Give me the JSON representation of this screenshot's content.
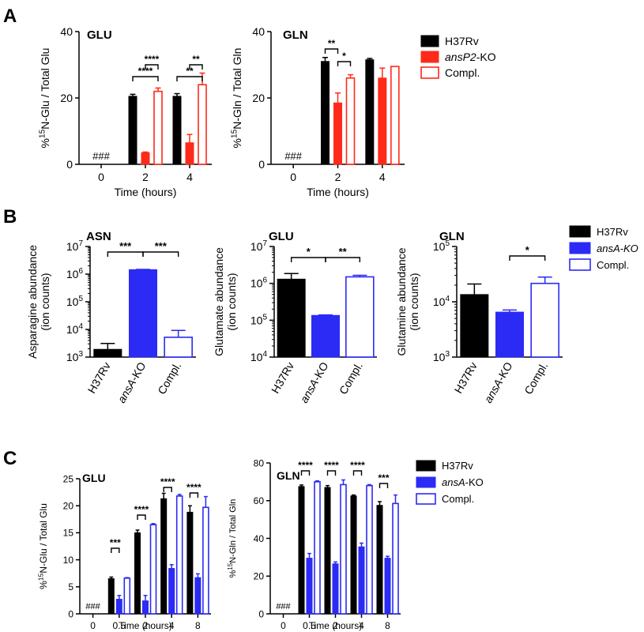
{
  "colors": {
    "black": "#000000",
    "red": "#ff2a1a",
    "blue": "#2b2bf5"
  },
  "chart_data": [
    {
      "id": "A-GLU",
      "panel": "A",
      "type": "bar",
      "title": "GLU",
      "ylabel_parts": [
        "%",
        "15",
        "N-Glu / Total Glu"
      ],
      "xlabel": "Time (hours)",
      "ylim": [
        0,
        40
      ],
      "yticks": [
        "0",
        "20",
        "40"
      ],
      "categories": [
        "0",
        "2",
        "4"
      ],
      "series": [
        {
          "name": "H37Rv",
          "style": "black",
          "values": [
            null,
            20.5,
            20.5
          ],
          "errors": [
            0,
            0.6,
            0.8
          ]
        },
        {
          "name": "ansP2-KO",
          "style": "red",
          "values": [
            null,
            3.5,
            6.5
          ],
          "errors": [
            0,
            0.2,
            2.5
          ]
        },
        {
          "name": "Compl.",
          "style": "red-outline",
          "values": [
            null,
            22,
            24
          ],
          "errors": [
            0,
            1,
            3.5
          ]
        }
      ],
      "missing_label": "###",
      "sig": [
        {
          "cat": 1,
          "a": 0,
          "b": 2,
          "text": "****"
        },
        {
          "cat": 1,
          "a": 1,
          "b": 2,
          "text": "****"
        },
        {
          "cat": 2,
          "a": 0,
          "b": 2,
          "text": "**"
        },
        {
          "cat": 2,
          "a": 1,
          "b": 2,
          "text": "**"
        }
      ]
    },
    {
      "id": "A-GLN",
      "panel": "A",
      "type": "bar",
      "title": "GLN",
      "ylabel_parts": [
        "%",
        "15",
        "N-Gln / Total Gln"
      ],
      "xlabel": "Time (hours)",
      "ylim": [
        0,
        40
      ],
      "yticks": [
        "0",
        "20",
        "40"
      ],
      "categories": [
        "0",
        "2",
        "4"
      ],
      "series": [
        {
          "name": "H37Rv",
          "style": "black",
          "values": [
            null,
            31,
            31.5
          ],
          "errors": [
            0,
            1.2,
            0.4
          ]
        },
        {
          "name": "ansP2-KO",
          "style": "red",
          "values": [
            null,
            18.5,
            26
          ],
          "errors": [
            0,
            3,
            3
          ]
        },
        {
          "name": "Compl.",
          "style": "red-outline",
          "values": [
            null,
            26,
            29.5
          ],
          "errors": [
            0,
            1,
            0
          ]
        }
      ],
      "missing_label": "###",
      "sig": [
        {
          "cat": 1,
          "a": 0,
          "b": 1,
          "text": "**"
        },
        {
          "cat": 1,
          "a": 1,
          "b": 2,
          "text": "*"
        }
      ]
    },
    {
      "id": "B-ASN",
      "panel": "B",
      "type": "bar",
      "title": "ASN",
      "log": true,
      "ylabel_lines": [
        "Asparagine abundance",
        "(ion counts)"
      ],
      "ylim_exp": [
        3,
        7
      ],
      "categories": [
        "H37Rv",
        "ansA-KO",
        "Compl."
      ],
      "italic_categories": [
        "ansA"
      ],
      "values": [
        1900,
        1450000,
        5200
      ],
      "errors": [
        1200,
        30000,
        4000
      ],
      "styles": [
        "black",
        "blue",
        "blue-outline"
      ],
      "sig": [
        {
          "a": 0,
          "b": 1,
          "text": "***"
        },
        {
          "a": 1,
          "b": 2,
          "text": "***"
        }
      ]
    },
    {
      "id": "B-GLU",
      "panel": "B",
      "type": "bar",
      "title": "GLU",
      "log": true,
      "ylabel_lines": [
        "Glutamate abundance",
        "(ion counts)"
      ],
      "ylim_exp": [
        4,
        7
      ],
      "categories": [
        "H37Rv",
        "ansA-KO",
        "Compl."
      ],
      "italic_categories": [
        "ansA"
      ],
      "values": [
        1300000,
        135000,
        1500000
      ],
      "errors": [
        550000,
        4000,
        150000
      ],
      "styles": [
        "black",
        "blue",
        "blue-outline"
      ],
      "sig": [
        {
          "a": 0,
          "b": 1,
          "text": "*"
        },
        {
          "a": 1,
          "b": 2,
          "text": "**"
        }
      ]
    },
    {
      "id": "B-GLN",
      "panel": "B",
      "type": "bar",
      "title": "GLN",
      "log": true,
      "ylabel_lines": [
        "Glutamine abundance",
        "(ion counts)"
      ],
      "ylim_exp": [
        3,
        5
      ],
      "categories": [
        "H37Rv",
        "ansA-KO",
        "Compl."
      ],
      "italic_categories": [
        "ansA"
      ],
      "values": [
        13500,
        6500,
        21500
      ],
      "errors": [
        7500,
        600,
        6500
      ],
      "styles": [
        "black",
        "blue",
        "blue-outline"
      ],
      "sig": [
        {
          "a": 1,
          "b": 2,
          "text": "*"
        }
      ]
    },
    {
      "id": "C-GLU",
      "panel": "C",
      "type": "bar",
      "title": "GLU",
      "ylabel_parts": [
        "%",
        "15",
        "N-Glu / Total Glu"
      ],
      "xlabel": "Time (hours)",
      "ylim": [
        0,
        25
      ],
      "yticks": [
        "0",
        "5",
        "10",
        "15",
        "20",
        "25"
      ],
      "categories": [
        "0",
        "0.5",
        "2",
        "4",
        "8"
      ],
      "series": [
        {
          "name": "H37Rv",
          "style": "black",
          "values": [
            null,
            6.5,
            15,
            21.3,
            18.8
          ],
          "errors": [
            0,
            0.3,
            0.5,
            1,
            1.2
          ]
        },
        {
          "name": "ansA-KO",
          "style": "blue",
          "values": [
            null,
            2.7,
            2.4,
            8.4,
            6.7
          ],
          "errors": [
            0,
            0.7,
            1,
            0.7,
            0.7
          ]
        },
        {
          "name": "Compl.",
          "style": "blue-outline",
          "values": [
            null,
            6.6,
            16.5,
            21.8,
            19.7
          ],
          "errors": [
            0,
            0.1,
            0.2,
            0.3,
            2
          ]
        }
      ],
      "missing_label": "###",
      "sig": [
        {
          "cat": 1,
          "a": 0,
          "b": 1,
          "text": "***"
        },
        {
          "cat": 2,
          "a": 0,
          "b": 1,
          "text": "****"
        },
        {
          "cat": 3,
          "a": 0,
          "b": 1,
          "text": "****"
        },
        {
          "cat": 4,
          "a": 0,
          "b": 1,
          "text": "****"
        }
      ]
    },
    {
      "id": "C-GLN",
      "panel": "C",
      "type": "bar",
      "title": "GLN",
      "ylabel_parts": [
        "%",
        "15",
        "N-Gln / Total Gln"
      ],
      "xlabel": "Time (hours)",
      "ylim": [
        0,
        80
      ],
      "yticks": [
        "0",
        "20",
        "40",
        "60",
        "80"
      ],
      "categories": [
        "0",
        "0.5",
        "2",
        "4",
        "8"
      ],
      "series": [
        {
          "name": "H37Rv",
          "style": "black",
          "values": [
            null,
            67.5,
            67,
            62.5,
            57.5
          ],
          "errors": [
            0,
            0.8,
            1,
            0.5,
            2
          ]
        },
        {
          "name": "ansA-KO",
          "style": "blue",
          "values": [
            null,
            29.5,
            26.5,
            35.5,
            29.5
          ],
          "errors": [
            0,
            2.5,
            1,
            2,
            1
          ]
        },
        {
          "name": "Compl.",
          "style": "blue-outline",
          "values": [
            null,
            70,
            68.5,
            68,
            58.5
          ],
          "errors": [
            0,
            0.5,
            2.5,
            0.5,
            4.5
          ]
        }
      ],
      "missing_label": "###",
      "sig": [
        {
          "cat": 1,
          "a": 0,
          "b": 1,
          "text": "****"
        },
        {
          "cat": 2,
          "a": 0,
          "b": 1,
          "text": "****"
        },
        {
          "cat": 3,
          "a": 0,
          "b": 1,
          "text": "****"
        },
        {
          "cat": 4,
          "a": 0,
          "b": 1,
          "text": "***"
        }
      ]
    }
  ],
  "panel_labels": [
    "A",
    "B",
    "C"
  ],
  "legends": {
    "A": [
      {
        "label": "H37Rv",
        "style": "black"
      },
      {
        "label_parts": [
          [
            "ansP2",
            true
          ],
          [
            "-KO",
            false
          ]
        ],
        "style": "red"
      },
      {
        "label": "Compl.",
        "style": "red-outline"
      }
    ],
    "B": [
      {
        "label": "H37Rv",
        "style": "black"
      },
      {
        "label_parts": [
          [
            "ansA-KO",
            true
          ]
        ],
        "style": "blue"
      },
      {
        "label": "Compl.",
        "style": "blue-outline"
      }
    ],
    "C": [
      {
        "label": "H37Rv",
        "style": "black"
      },
      {
        "label_parts": [
          [
            "ansA",
            true
          ],
          [
            "-KO",
            false
          ]
        ],
        "style": "blue"
      },
      {
        "label": "Compl.",
        "style": "blue-outline"
      }
    ]
  }
}
